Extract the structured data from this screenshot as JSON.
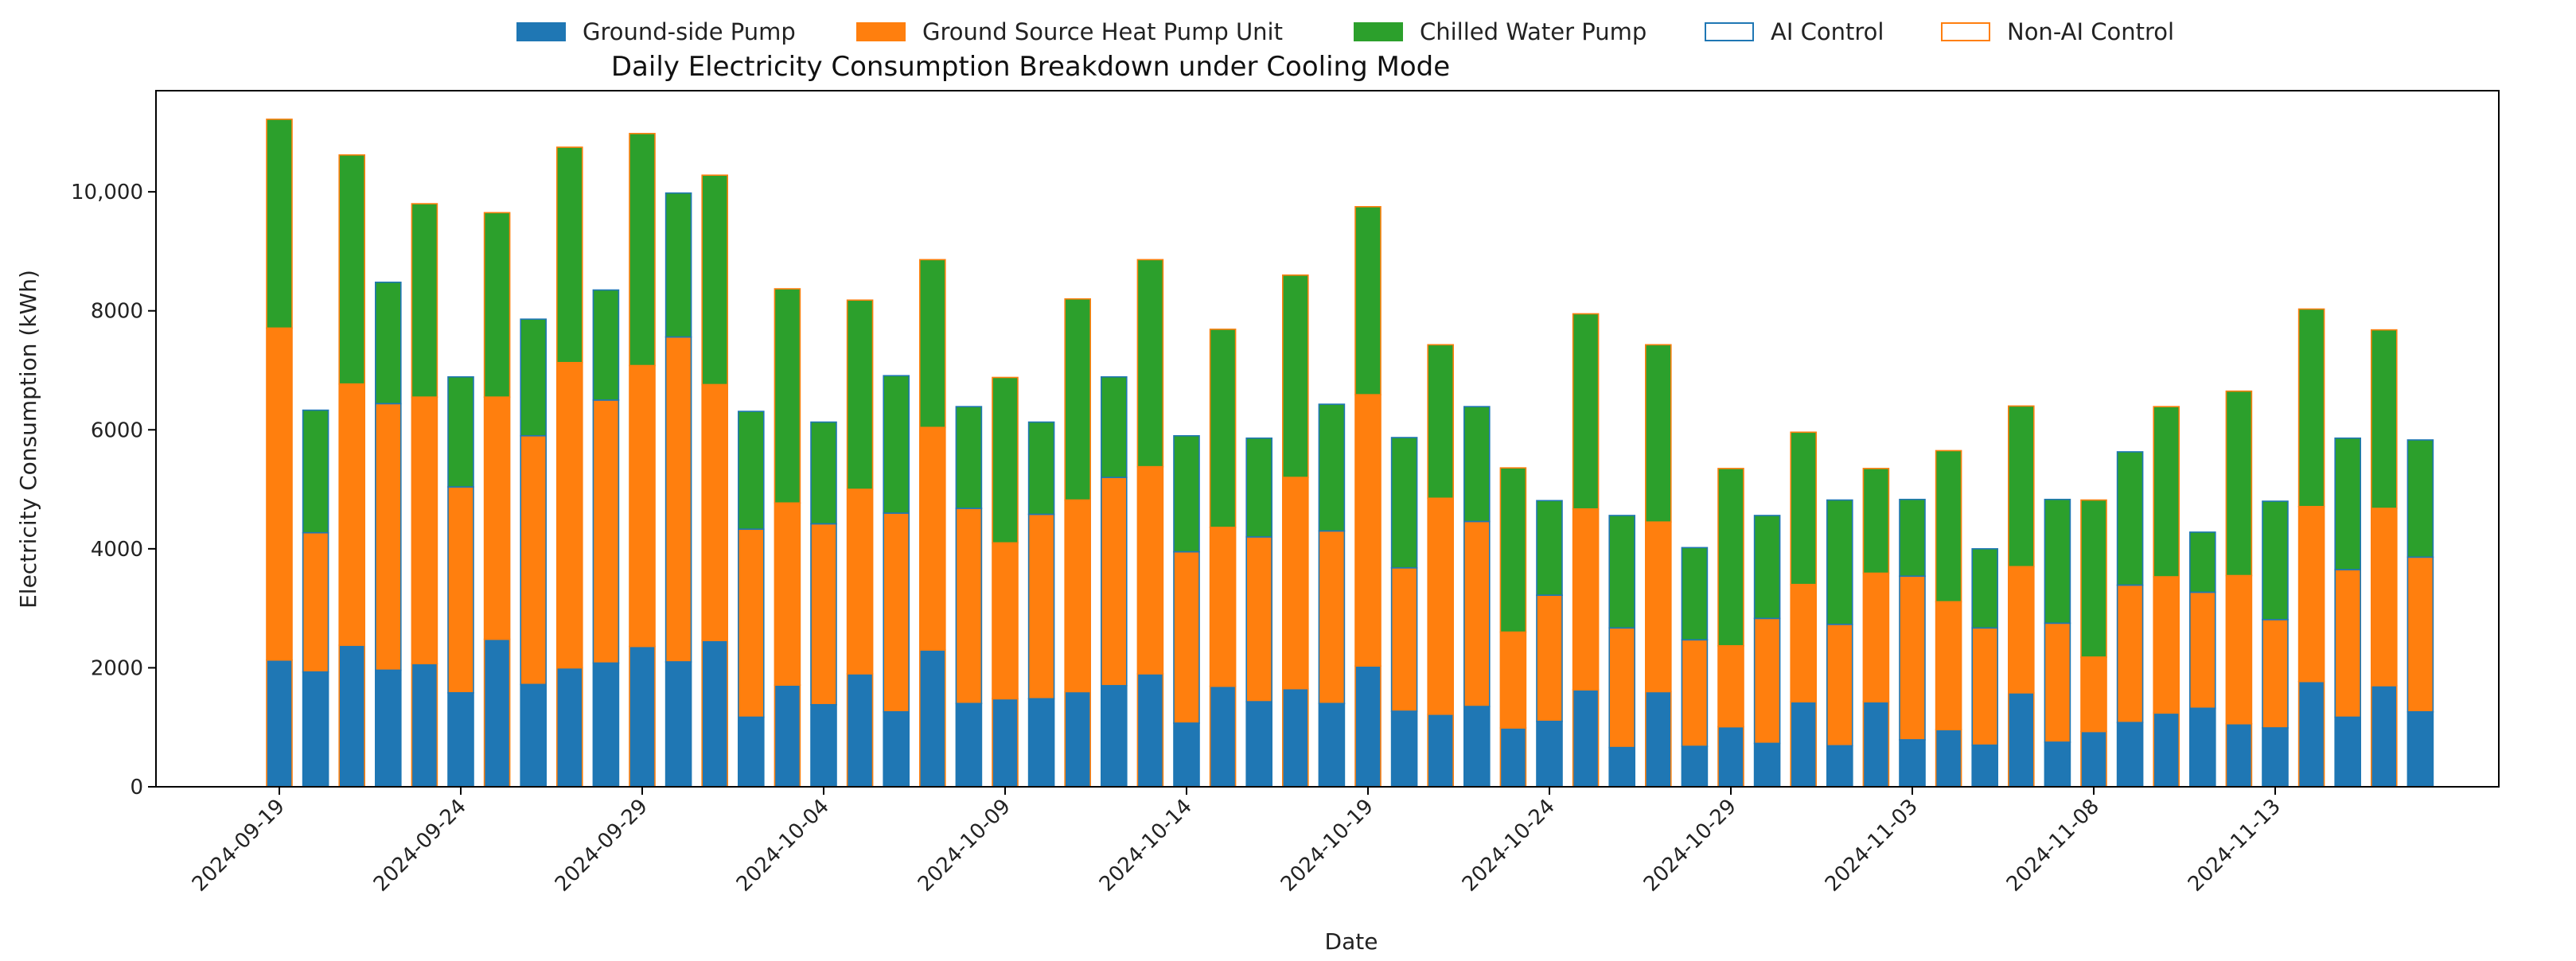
{
  "chart_data": {
    "type": "bar",
    "stacked": true,
    "title": "Daily Electricity Consumption Breakdown under Cooling Mode",
    "xlabel": "Date",
    "ylabel": "Electricity Consumption (kWh)",
    "ylim": [
      0,
      11700
    ],
    "yticks": [
      0,
      2000,
      4000,
      6000,
      8000,
      10000
    ],
    "ytick_labels": [
      "0",
      "2000",
      "4000",
      "6000",
      "8000",
      "10,000"
    ],
    "xtick_labels": [
      "2024-09-19",
      "2024-09-24",
      "2024-09-29",
      "2024-10-04",
      "2024-10-09",
      "2024-10-14",
      "2024-10-19",
      "2024-10-24",
      "2024-10-29",
      "2024-11-03",
      "2024-11-08",
      "2024-11-13"
    ],
    "xtick_every": 5,
    "categories": [
      "2024-09-19",
      "2024-09-20",
      "2024-09-21",
      "2024-09-22",
      "2024-09-23",
      "2024-09-24",
      "2024-09-25",
      "2024-09-26",
      "2024-09-27",
      "2024-09-28",
      "2024-09-29",
      "2024-09-30",
      "2024-10-01",
      "2024-10-02",
      "2024-10-03",
      "2024-10-04",
      "2024-10-05",
      "2024-10-06",
      "2024-10-07",
      "2024-10-08",
      "2024-10-09",
      "2024-10-10",
      "2024-10-11",
      "2024-10-12",
      "2024-10-13",
      "2024-10-14",
      "2024-10-15",
      "2024-10-16",
      "2024-10-17",
      "2024-10-18",
      "2024-10-19",
      "2024-10-20",
      "2024-10-21",
      "2024-10-22",
      "2024-10-23",
      "2024-10-24",
      "2024-10-25",
      "2024-10-26",
      "2024-10-27",
      "2024-10-28",
      "2024-10-29",
      "2024-10-30",
      "2024-10-31",
      "2024-11-01",
      "2024-11-02",
      "2024-11-03",
      "2024-11-04",
      "2024-11-05",
      "2024-11-06",
      "2024-11-07",
      "2024-11-08",
      "2024-11-09",
      "2024-11-10",
      "2024-11-11",
      "2024-11-12",
      "2024-11-13",
      "2024-11-14",
      "2024-11-15",
      "2024-11-16",
      "2024-11-17"
    ],
    "control": [
      "non-ai",
      "ai",
      "non-ai",
      "ai",
      "non-ai",
      "ai",
      "non-ai",
      "ai",
      "non-ai",
      "ai",
      "non-ai",
      "ai",
      "non-ai",
      "ai",
      "non-ai",
      "ai",
      "non-ai",
      "ai",
      "non-ai",
      "ai",
      "non-ai",
      "ai",
      "non-ai",
      "ai",
      "non-ai",
      "ai",
      "non-ai",
      "ai",
      "non-ai",
      "ai",
      "non-ai",
      "ai",
      "non-ai",
      "ai",
      "non-ai",
      "ai",
      "non-ai",
      "ai",
      "non-ai",
      "ai",
      "non-ai",
      "ai",
      "non-ai",
      "ai",
      "non-ai",
      "ai",
      "non-ai",
      "ai",
      "non-ai",
      "ai",
      "non-ai",
      "ai",
      "non-ai",
      "ai",
      "non-ai",
      "ai",
      "non-ai",
      "ai",
      "non-ai",
      "ai"
    ],
    "series": [
      {
        "name": "Ground-side Pump",
        "color": "#1f77b4",
        "values": [
          2130,
          1930,
          2380,
          1960,
          2070,
          1580,
          2480,
          1720,
          2000,
          2080,
          2360,
          2100,
          2460,
          1170,
          1710,
          1380,
          1900,
          1260,
          2300,
          1400,
          1480,
          1480,
          1600,
          1700,
          1900,
          1070,
          1690,
          1430,
          1650,
          1400,
          2030,
          1270,
          1220,
          1350,
          990,
          1100,
          1630,
          660,
          1600,
          680,
          1010,
          730,
          1430,
          690,
          1430,
          790,
          960,
          700,
          1580,
          750,
          930,
          1080,
          1240,
          1320,
          1060,
          990,
          1770,
          1170,
          1700,
          1260
        ]
      },
      {
        "name": "Ground Source Heat Pump Unit",
        "color": "#ff7f0e",
        "values": [
          5580,
          2340,
          4390,
          4480,
          4480,
          3460,
          4070,
          4180,
          5130,
          4420,
          4720,
          5460,
          4300,
          3160,
          3060,
          3040,
          3100,
          3340,
          3740,
          3280,
          2620,
          3100,
          3220,
          3500,
          3480,
          2880,
          2670,
          2770,
          3550,
          2900,
          4560,
          2410,
          3630,
          3110,
          1610,
          2120,
          3040,
          2010,
          2850,
          1790,
          1360,
          2100,
          1970,
          2040,
          2160,
          2750,
          2150,
          1970,
          2120,
          2000,
          1250,
          2310,
          2290,
          1950,
          2490,
          1820,
          2940,
          2480,
          2980,
          2600
        ]
      },
      {
        "name": "Chilled Water Pump",
        "color": "#2ca02c",
        "values": [
          3510,
          2060,
          3850,
          2040,
          3250,
          1850,
          3100,
          1960,
          3620,
          1850,
          3900,
          2420,
          3520,
          1980,
          3600,
          1710,
          3180,
          2310,
          2820,
          1710,
          2780,
          1550,
          3380,
          1690,
          3480,
          1950,
          3330,
          1660,
          3400,
          2130,
          3160,
          2190,
          2580,
          1930,
          2760,
          1590,
          3280,
          1890,
          2980,
          1550,
          2980,
          1730,
          2560,
          2090,
          1760,
          1290,
          2540,
          1330,
          2700,
          2080,
          2640,
          2240,
          2860,
          1010,
          3100,
          1990,
          3320,
          2210,
          3000,
          1970
        ]
      }
    ],
    "legend": {
      "placement": "top-center",
      "entries": [
        {
          "label": "Ground-side Pump",
          "kind": "fill",
          "color": "#1f77b4"
        },
        {
          "label": "Ground Source Heat Pump Unit",
          "kind": "fill",
          "color": "#ff7f0e"
        },
        {
          "label": "Chilled Water Pump",
          "kind": "fill",
          "color": "#2ca02c"
        },
        {
          "label": "AI Control",
          "kind": "outline",
          "color": "#1f77b4"
        },
        {
          "label": "Non-AI Control",
          "kind": "outline",
          "color": "#ff7f0e"
        }
      ]
    },
    "grid": false
  }
}
